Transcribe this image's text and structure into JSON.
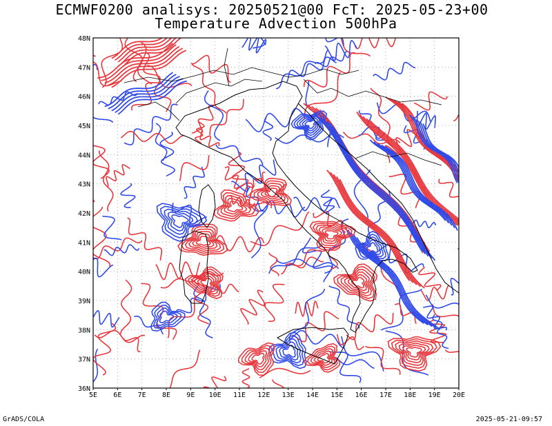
{
  "title": {
    "line1": "ECMWF0200 analisys: 20250521@00 FcT: 2025-05-23+00",
    "line2": "Temperature Advection 500hPa"
  },
  "axes": {
    "lon_labels": [
      "5E",
      "6E",
      "7E",
      "8E",
      "9E",
      "10E",
      "11E",
      "12E",
      "13E",
      "14E",
      "15E",
      "16E",
      "17E",
      "18E",
      "19E",
      "20E"
    ],
    "lat_labels": [
      "36N",
      "37N",
      "38N",
      "39N",
      "40N",
      "41N",
      "42N",
      "43N",
      "44N",
      "45N",
      "46N",
      "47N",
      "48N"
    ],
    "lon_range": [
      5,
      20
    ],
    "lat_range": [
      36,
      48
    ]
  },
  "colors": {
    "warm_advection": "#e8373c",
    "cold_advection": "#2f4ae8",
    "coastline": "#000000",
    "grid": "#999999"
  },
  "footer": {
    "left": "GrADS/COLA",
    "right": "2025-05-21-09:57"
  }
}
